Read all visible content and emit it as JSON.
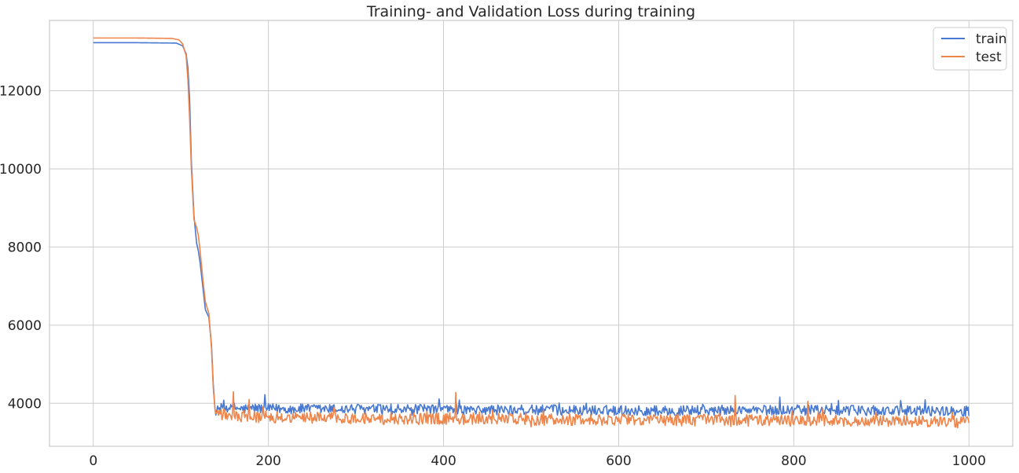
{
  "chart_data": {
    "type": "line",
    "title": "Training- and Validation Loss during training",
    "xlabel": "",
    "ylabel": "",
    "xlim": [
      -50,
      1050
    ],
    "ylim": [
      2900,
      13800
    ],
    "xticks": [
      0,
      200,
      400,
      600,
      800,
      1000
    ],
    "yticks": [
      4000,
      6000,
      8000,
      10000,
      12000
    ],
    "grid": true,
    "legend_position": "top-right",
    "colors": {
      "train": "#4878d0",
      "test": "#ee854a",
      "grid": "#cccccc",
      "spine": "#cccccc"
    },
    "series": [
      {
        "name": "train",
        "color": "#4878d0",
        "x": [
          0,
          50,
          95,
          102,
          106,
          108,
          110,
          112,
          115,
          118,
          120,
          122,
          125,
          128,
          132,
          135,
          137,
          139,
          141,
          143,
          145,
          150,
          160,
          170,
          180,
          190,
          200,
          220,
          250,
          300,
          350,
          400,
          450,
          500,
          550,
          600,
          650,
          700,
          750,
          800,
          850,
          900,
          950,
          1000
        ],
        "y": [
          13230,
          13230,
          13220,
          13150,
          12950,
          12600,
          11800,
          10200,
          8800,
          8100,
          7900,
          7600,
          7000,
          6400,
          6200,
          5500,
          4500,
          3850,
          3800,
          3850,
          3870,
          3880,
          3900,
          3850,
          3880,
          3870,
          3860,
          3860,
          3850,
          3850,
          3840,
          3840,
          3830,
          3830,
          3820,
          3820,
          3810,
          3820,
          3820,
          3830,
          3820,
          3810,
          3810,
          3800
        ],
        "noise": 260,
        "spikes": [
          [
            196,
            4220
          ],
          [
            395,
            4110
          ],
          [
            784,
            4160
          ],
          [
            950,
            4090
          ]
        ]
      },
      {
        "name": "test",
        "color": "#ee854a",
        "x": [
          0,
          50,
          90,
          98,
          102,
          106,
          108,
          110,
          112,
          115,
          118,
          120,
          122,
          125,
          128,
          132,
          135,
          137,
          139,
          141,
          143,
          145,
          150,
          160,
          170,
          180,
          200,
          220,
          250,
          300,
          350,
          400,
          450,
          500,
          550,
          600,
          650,
          700,
          750,
          800,
          850,
          900,
          950,
          1000
        ],
        "y": [
          13350,
          13350,
          13340,
          13300,
          13200,
          12900,
          12300,
          11300,
          10000,
          8700,
          8500,
          8300,
          7900,
          7200,
          6600,
          6300,
          5400,
          4400,
          3850,
          3750,
          3720,
          3700,
          3690,
          3680,
          3670,
          3660,
          3650,
          3640,
          3630,
          3620,
          3600,
          3610,
          3600,
          3590,
          3580,
          3580,
          3570,
          3570,
          3560,
          3560,
          3550,
          3540,
          3530,
          3520
        ],
        "noise": 300,
        "spikes": [
          [
            160,
            4300
          ],
          [
            178,
            4100
          ],
          [
            414,
            4280
          ],
          [
            733,
            4200
          ],
          [
            816,
            4050
          ]
        ]
      }
    ]
  }
}
